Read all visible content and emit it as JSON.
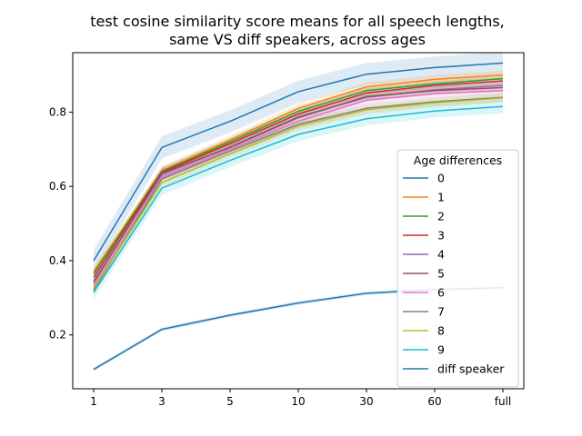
{
  "chart_data": {
    "type": "line",
    "title_lines": [
      "test cosine similarity score means for all speech lengths,",
      "same VS diff speakers, across ages"
    ],
    "xlabel": "",
    "ylabel": "",
    "categories": [
      "1",
      "3",
      "5",
      "10",
      "30",
      "60",
      "full"
    ],
    "yticks": [
      0.2,
      0.4,
      0.6,
      0.8
    ],
    "ylim": [
      0.055,
      0.96
    ],
    "grid": false,
    "legend": {
      "title": "Age differences",
      "placement": "center-right"
    },
    "series": [
      {
        "name": "0",
        "color": "#1f77b4",
        "values": [
          0.4,
          0.705,
          0.775,
          0.855,
          0.902,
          0.92,
          0.932
        ],
        "band": 0.03
      },
      {
        "name": "1",
        "color": "#ff7f0e",
        "values": [
          0.37,
          0.642,
          0.725,
          0.81,
          0.868,
          0.888,
          0.9
        ],
        "band": 0.012
      },
      {
        "name": "2",
        "color": "#2ca02c",
        "values": [
          0.365,
          0.64,
          0.72,
          0.802,
          0.858,
          0.876,
          0.89
        ],
        "band": 0.012
      },
      {
        "name": "3",
        "color": "#d62728",
        "values": [
          0.355,
          0.638,
          0.715,
          0.795,
          0.852,
          0.872,
          0.884
        ],
        "band": 0.012
      },
      {
        "name": "4",
        "color": "#9467bd",
        "values": [
          0.345,
          0.632,
          0.706,
          0.787,
          0.84,
          0.86,
          0.872
        ],
        "band": 0.012
      },
      {
        "name": "5",
        "color": "#8c564b",
        "values": [
          0.34,
          0.636,
          0.705,
          0.785,
          0.842,
          0.858,
          0.866
        ],
        "band": 0.012
      },
      {
        "name": "6",
        "color": "#e377c2",
        "values": [
          0.33,
          0.625,
          0.7,
          0.775,
          0.832,
          0.85,
          0.858
        ],
        "band": 0.012
      },
      {
        "name": "7",
        "color": "#7f7f7f",
        "values": [
          0.32,
          0.62,
          0.695,
          0.767,
          0.81,
          0.828,
          0.84
        ],
        "band": 0.012
      },
      {
        "name": "8",
        "color": "#bcbd22",
        "values": [
          0.325,
          0.61,
          0.688,
          0.762,
          0.806,
          0.825,
          0.838
        ],
        "band": 0.012
      },
      {
        "name": "9",
        "color": "#17becf",
        "values": [
          0.315,
          0.595,
          0.67,
          0.74,
          0.782,
          0.803,
          0.815
        ],
        "band": 0.018
      },
      {
        "name": "diff speaker",
        "color": "#1f77b4",
        "values": [
          0.107,
          0.215,
          0.253,
          0.286,
          0.312,
          0.322,
          0.327
        ],
        "band": 0.005
      }
    ]
  }
}
